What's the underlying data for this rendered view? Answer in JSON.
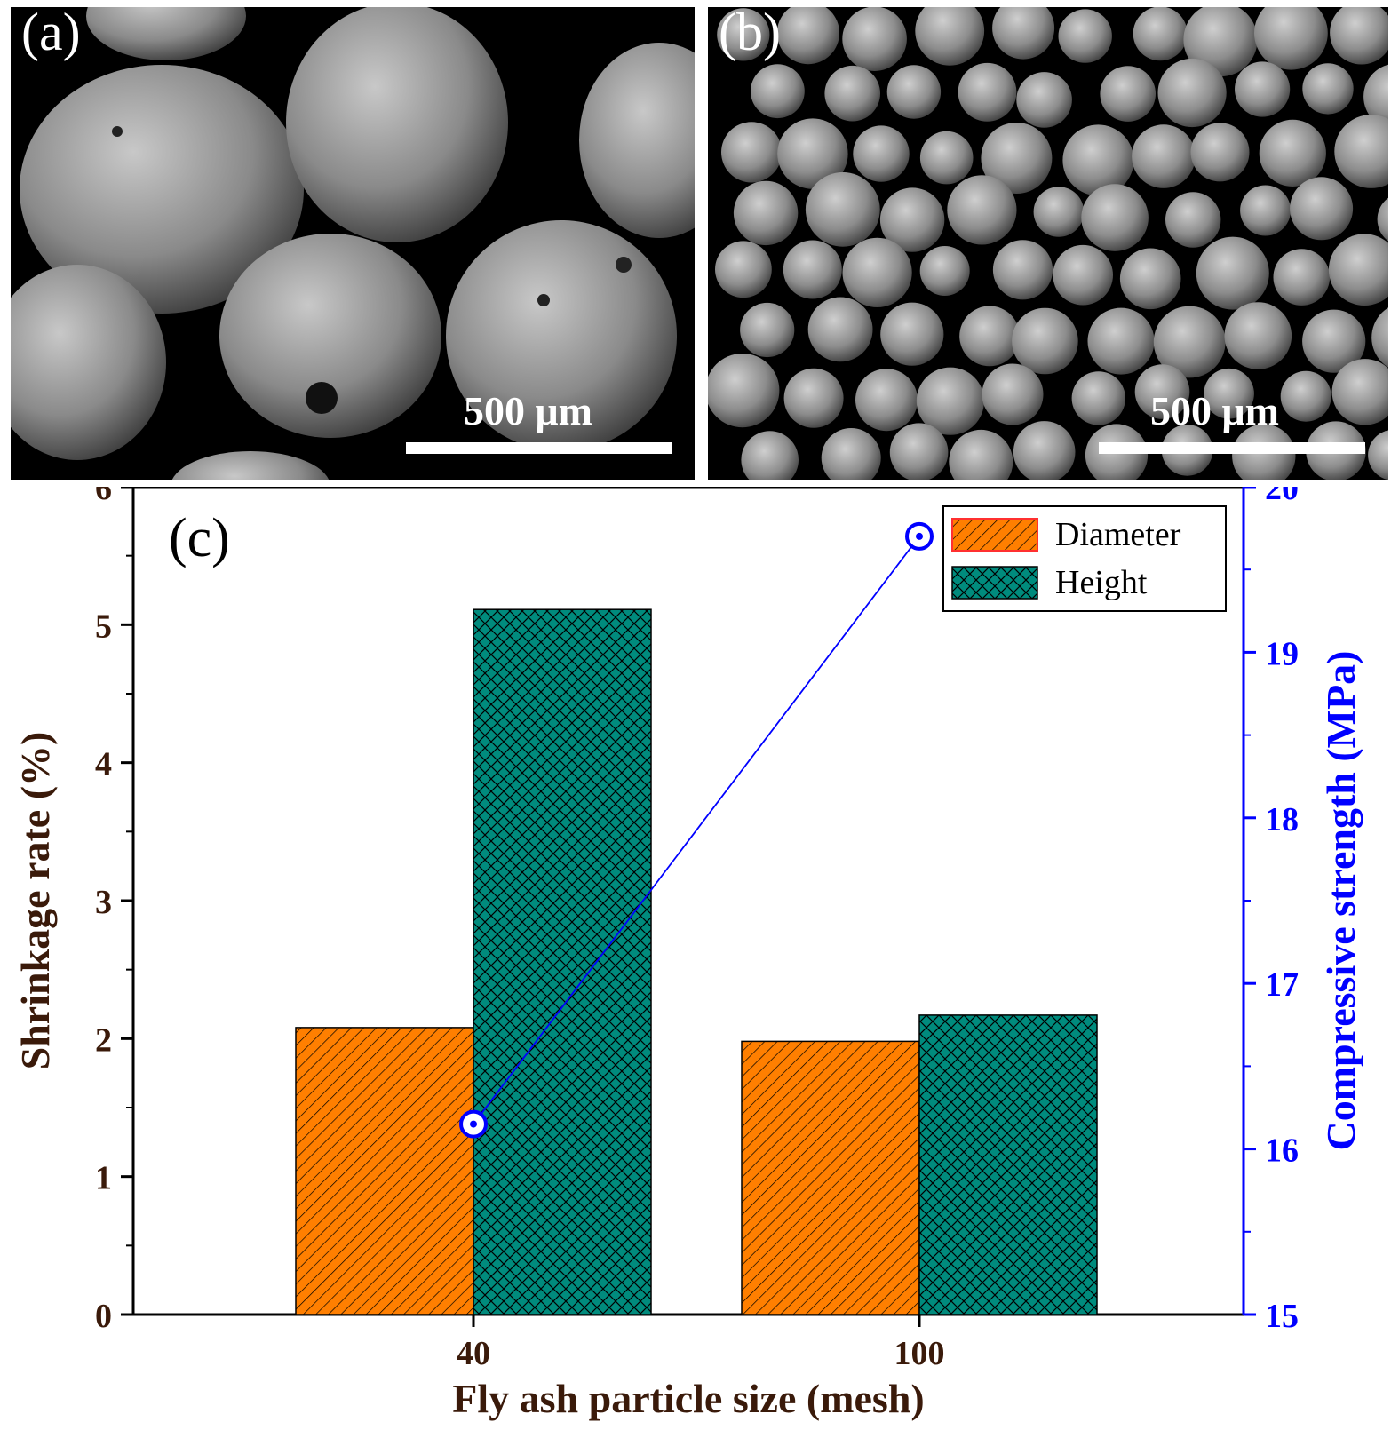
{
  "panels": {
    "a": {
      "label": "(a)",
      "scale_text": "500 μm"
    },
    "b": {
      "label": "(b)",
      "scale_text": "500 μm"
    }
  },
  "chart_data": {
    "type": "bar",
    "panel_label": "(c)",
    "categories": [
      "40",
      "100"
    ],
    "series": [
      {
        "name": "Diameter",
        "axis": "left",
        "kind": "bar",
        "values": [
          2.08,
          1.98
        ],
        "color": "#ff7f00",
        "pattern": "diagonal-hatch"
      },
      {
        "name": "Height",
        "axis": "left",
        "kind": "bar",
        "values": [
          5.11,
          2.17
        ],
        "color": "#008b7d",
        "pattern": "cross-hatch"
      },
      {
        "name": "",
        "axis": "right",
        "kind": "line",
        "values": [
          16.15,
          19.7
        ],
        "color": "#0000ff",
        "marker": "open-circle"
      }
    ],
    "xlabel": "Fly ash particle size (mesh)",
    "ylabel": "Shrinkage rate (%)",
    "y2label": "Compressive strength (MPa)",
    "ylim": [
      0,
      6
    ],
    "yticks": [
      "0",
      "1",
      "2",
      "3",
      "4",
      "5",
      "6"
    ],
    "y2lim": [
      15,
      20
    ],
    "y2ticks": [
      "15",
      "16",
      "17",
      "18",
      "19",
      "20"
    ],
    "legend_position": "top-right",
    "grid": false
  }
}
